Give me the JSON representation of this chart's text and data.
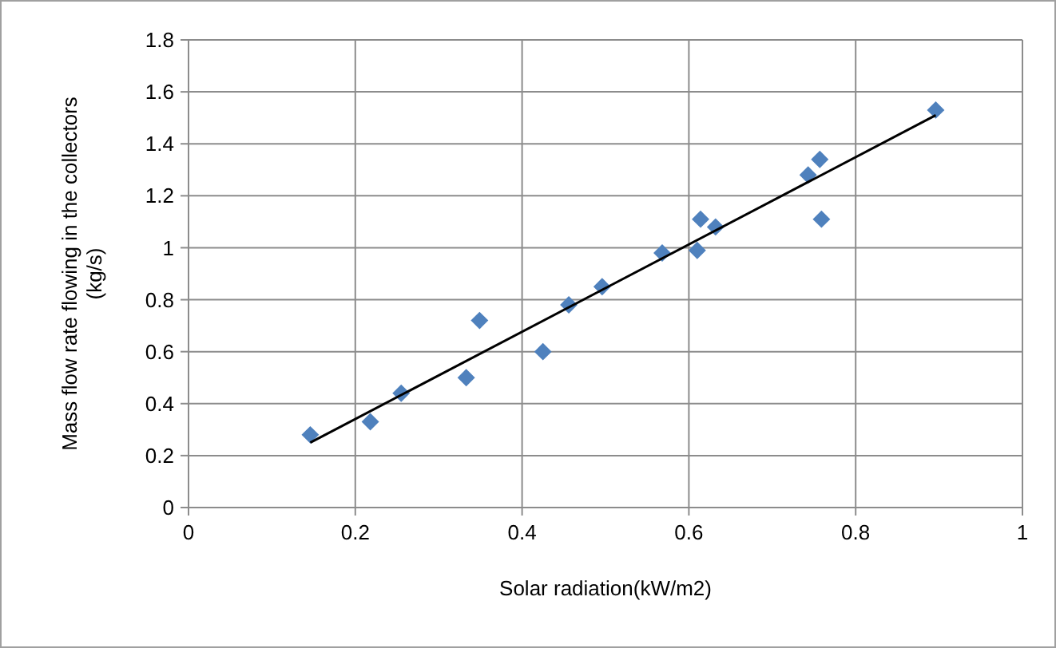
{
  "chart_data": {
    "type": "scatter",
    "xlabel": "Solar radiation(kW/m2)",
    "ylabel": "Mass flow rate flowing in the collectors (kg/s)",
    "xlim": [
      0,
      1
    ],
    "xticks": [
      0,
      0.2,
      0.4,
      0.6,
      0.8,
      1
    ],
    "ylim": [
      0,
      1.8
    ],
    "yticks": [
      0,
      0.2,
      0.4,
      0.6,
      0.8,
      1,
      1.2,
      1.4,
      1.6,
      1.8
    ],
    "grid": true,
    "series": [
      {
        "color": "#4f81bd",
        "marker": "diamond",
        "x": [
          0.146,
          0.218,
          0.255,
          0.333,
          0.349,
          0.425,
          0.456,
          0.496,
          0.568,
          0.61,
          0.614,
          0.632,
          0.743,
          0.757,
          0.759,
          0.896
        ],
        "values": [
          0.28,
          0.33,
          0.44,
          0.5,
          0.72,
          0.6,
          0.78,
          0.85,
          0.98,
          0.99,
          1.11,
          1.08,
          1.28,
          1.34,
          1.11,
          1.53
        ]
      },
      {
        "type": "line",
        "color": "#000000",
        "marker": "none",
        "x": [
          0.146,
          0.896
        ],
        "values": [
          0.25,
          1.51
        ]
      }
    ]
  }
}
